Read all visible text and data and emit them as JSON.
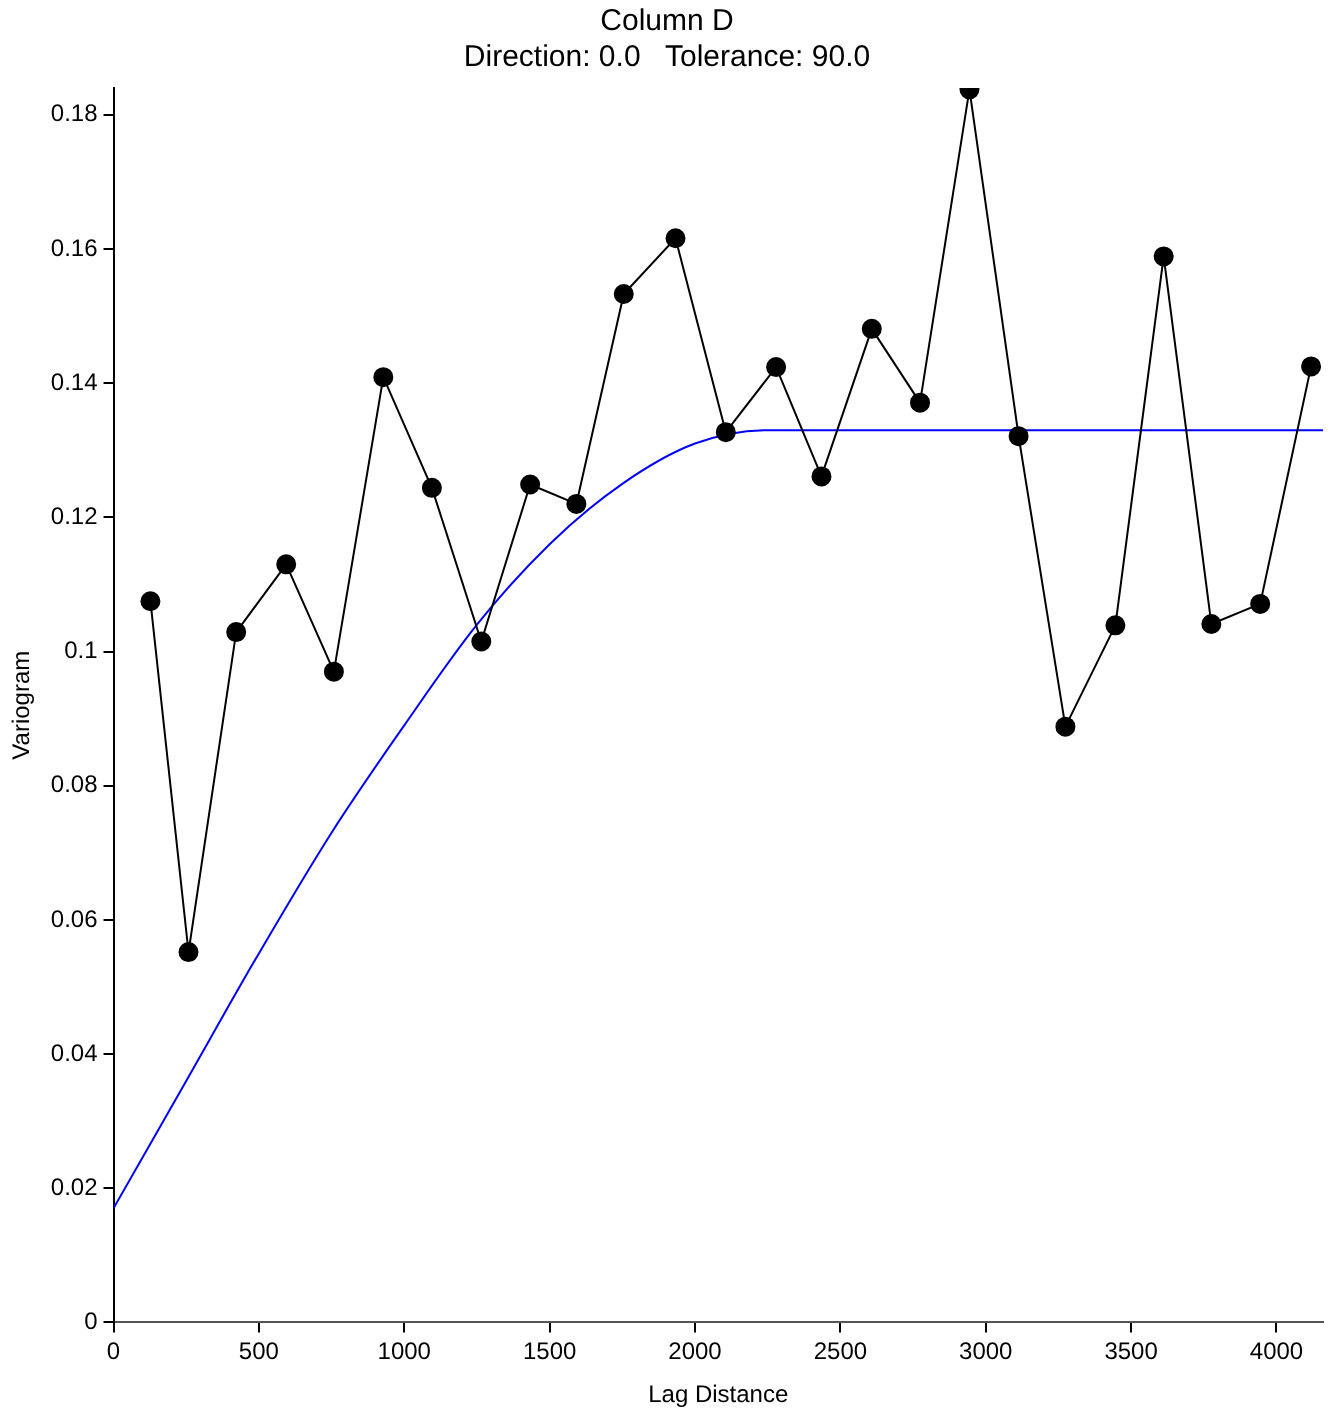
{
  "chart_data": {
    "type": "scatter",
    "title": "Column D",
    "subtitle": "Direction: 0.0   Tolerance: 90.0",
    "xlabel": "Lag Distance",
    "ylabel": "Variogram",
    "xlim": [
      0,
      4160
    ],
    "xticks": [
      0,
      500,
      1000,
      1500,
      2000,
      2500,
      3000,
      3500,
      4000
    ],
    "ylim": [
      0,
      0.184
    ],
    "yticks": [
      0,
      0.02,
      0.04,
      0.06,
      0.08,
      0.1,
      0.12,
      0.14,
      0.16,
      0.18
    ],
    "grid": false,
    "legend": false,
    "series": [
      {
        "type": "line",
        "color": "#000000",
        "marker": "circle",
        "x": [
          127,
          258,
          422,
          594,
          758,
          928,
          1095,
          1265,
          1433,
          1592,
          1755,
          1933,
          2106,
          2279,
          2435,
          2608,
          2774,
          2944,
          3113,
          3274,
          3446,
          3612,
          3776,
          3944,
          4119
        ],
        "values": [
          0.1075,
          0.0552,
          0.1029,
          0.113,
          0.097,
          0.1409,
          0.1244,
          0.1015,
          0.1249,
          0.122,
          0.1533,
          0.1616,
          0.1327,
          0.1424,
          0.1261,
          0.1481,
          0.1371,
          0.1838,
          0.1321,
          0.0888,
          0.1039,
          0.1589,
          0.1041,
          0.1071,
          0.1425
        ]
      },
      {
        "type": "line",
        "color": "#0000ff",
        "marker": "none",
        "x": [
          0,
          250,
          500,
          750,
          1000,
          1250,
          1500,
          1750,
          2000,
          2250,
          4160
        ],
        "values": [
          0.017,
          0.036,
          0.055,
          0.073,
          0.089,
          0.104,
          0.116,
          0.125,
          0.131,
          0.133,
          0.133
        ]
      }
    ]
  }
}
